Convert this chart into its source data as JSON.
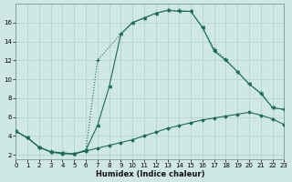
{
  "xlabel": "Humidex (Indice chaleur)",
  "bg_color": "#cfe8e5",
  "grid_color_major": "#b8d4d0",
  "grid_color_minor": "#ddecea",
  "line_color": "#1a6b5a",
  "line1_x": [
    0,
    1,
    2,
    3,
    4,
    5,
    6,
    7,
    9,
    10,
    11,
    12,
    13,
    14,
    15,
    16,
    17,
    18,
    19,
    20,
    21,
    22,
    23
  ],
  "line1_y": [
    4.5,
    3.8,
    2.8,
    2.4,
    2.2,
    2.1,
    2.4,
    12.0,
    14.8,
    16.0,
    16.5,
    17.0,
    17.3,
    17.3,
    17.2,
    15.5,
    13.2,
    12.1,
    10.8,
    9.5,
    8.6,
    7.0,
    6.8
  ],
  "line2_x": [
    0,
    1,
    2,
    3,
    4,
    5,
    6,
    7,
    8,
    9,
    10,
    11,
    12,
    13,
    14,
    15,
    16,
    17,
    18,
    19,
    20,
    21,
    22,
    23
  ],
  "line2_y": [
    4.5,
    3.8,
    2.8,
    2.3,
    2.2,
    2.1,
    2.5,
    5.1,
    9.2,
    14.8,
    16.0,
    16.5,
    17.0,
    17.3,
    17.2,
    17.2,
    15.5,
    13.0,
    12.0,
    10.8,
    9.5,
    8.5,
    7.0,
    6.8
  ],
  "line3_x": [
    0,
    1,
    2,
    3,
    4,
    5,
    6,
    7,
    8,
    9,
    10,
    11,
    12,
    13,
    14,
    15,
    16,
    17,
    18,
    19,
    20,
    21,
    22,
    23
  ],
  "line3_y": [
    4.5,
    3.8,
    2.8,
    2.3,
    2.1,
    2.1,
    2.4,
    2.7,
    3.0,
    3.3,
    3.6,
    4.0,
    4.4,
    4.8,
    5.1,
    5.4,
    5.7,
    5.9,
    6.1,
    6.3,
    6.5,
    6.2,
    5.8,
    5.2
  ],
  "xlim": [
    0,
    23
  ],
  "ylim": [
    1.5,
    18
  ],
  "yticks": [
    2,
    4,
    6,
    8,
    10,
    12,
    14,
    16
  ],
  "xticks": [
    0,
    1,
    2,
    3,
    4,
    5,
    6,
    7,
    8,
    9,
    10,
    11,
    12,
    13,
    14,
    15,
    16,
    17,
    18,
    19,
    20,
    21,
    22,
    23
  ]
}
